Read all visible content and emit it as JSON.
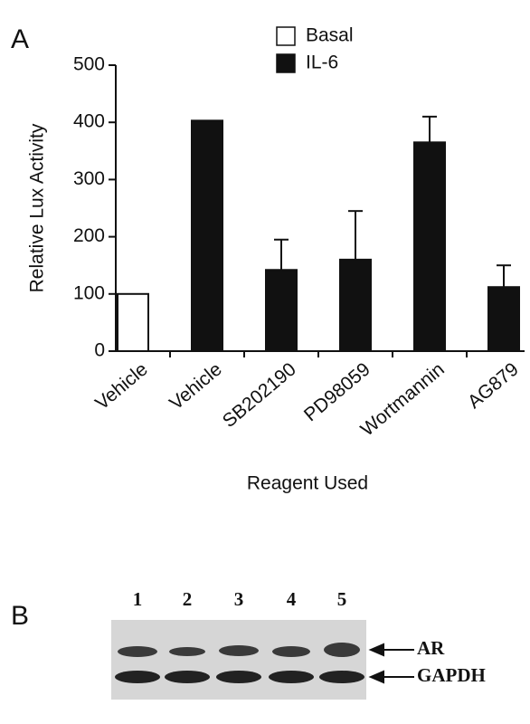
{
  "panel_a_label": "A",
  "chart_data": {
    "type": "bar",
    "x_label": "Reagent Used",
    "y_label": "Relative Lux Activity",
    "categories": [
      "Vehicle",
      "Vehicle",
      "SB202190",
      "PD98059",
      "Wortmannin",
      "AG879"
    ],
    "series": [
      {
        "name": "Basal",
        "color": "#ffffff",
        "values": [
          100,
          null,
          null,
          null,
          null,
          null
        ],
        "errors": [
          null,
          null,
          null,
          null,
          null,
          null
        ]
      },
      {
        "name": "IL-6",
        "color": "#111111",
        "values": [
          null,
          403,
          142,
          160,
          365,
          112
        ],
        "errors": [
          null,
          null,
          53,
          85,
          45,
          38
        ]
      }
    ],
    "ylim": [
      0,
      500
    ],
    "yticks": [
      0,
      100,
      200,
      300,
      400,
      500
    ],
    "legend": "top",
    "grid": false
  },
  "blot": {
    "panel_label": "B",
    "lanes": [
      "1",
      "2",
      "3",
      "4",
      "5"
    ],
    "bands": [
      "AR",
      "GAPDH"
    ]
  }
}
